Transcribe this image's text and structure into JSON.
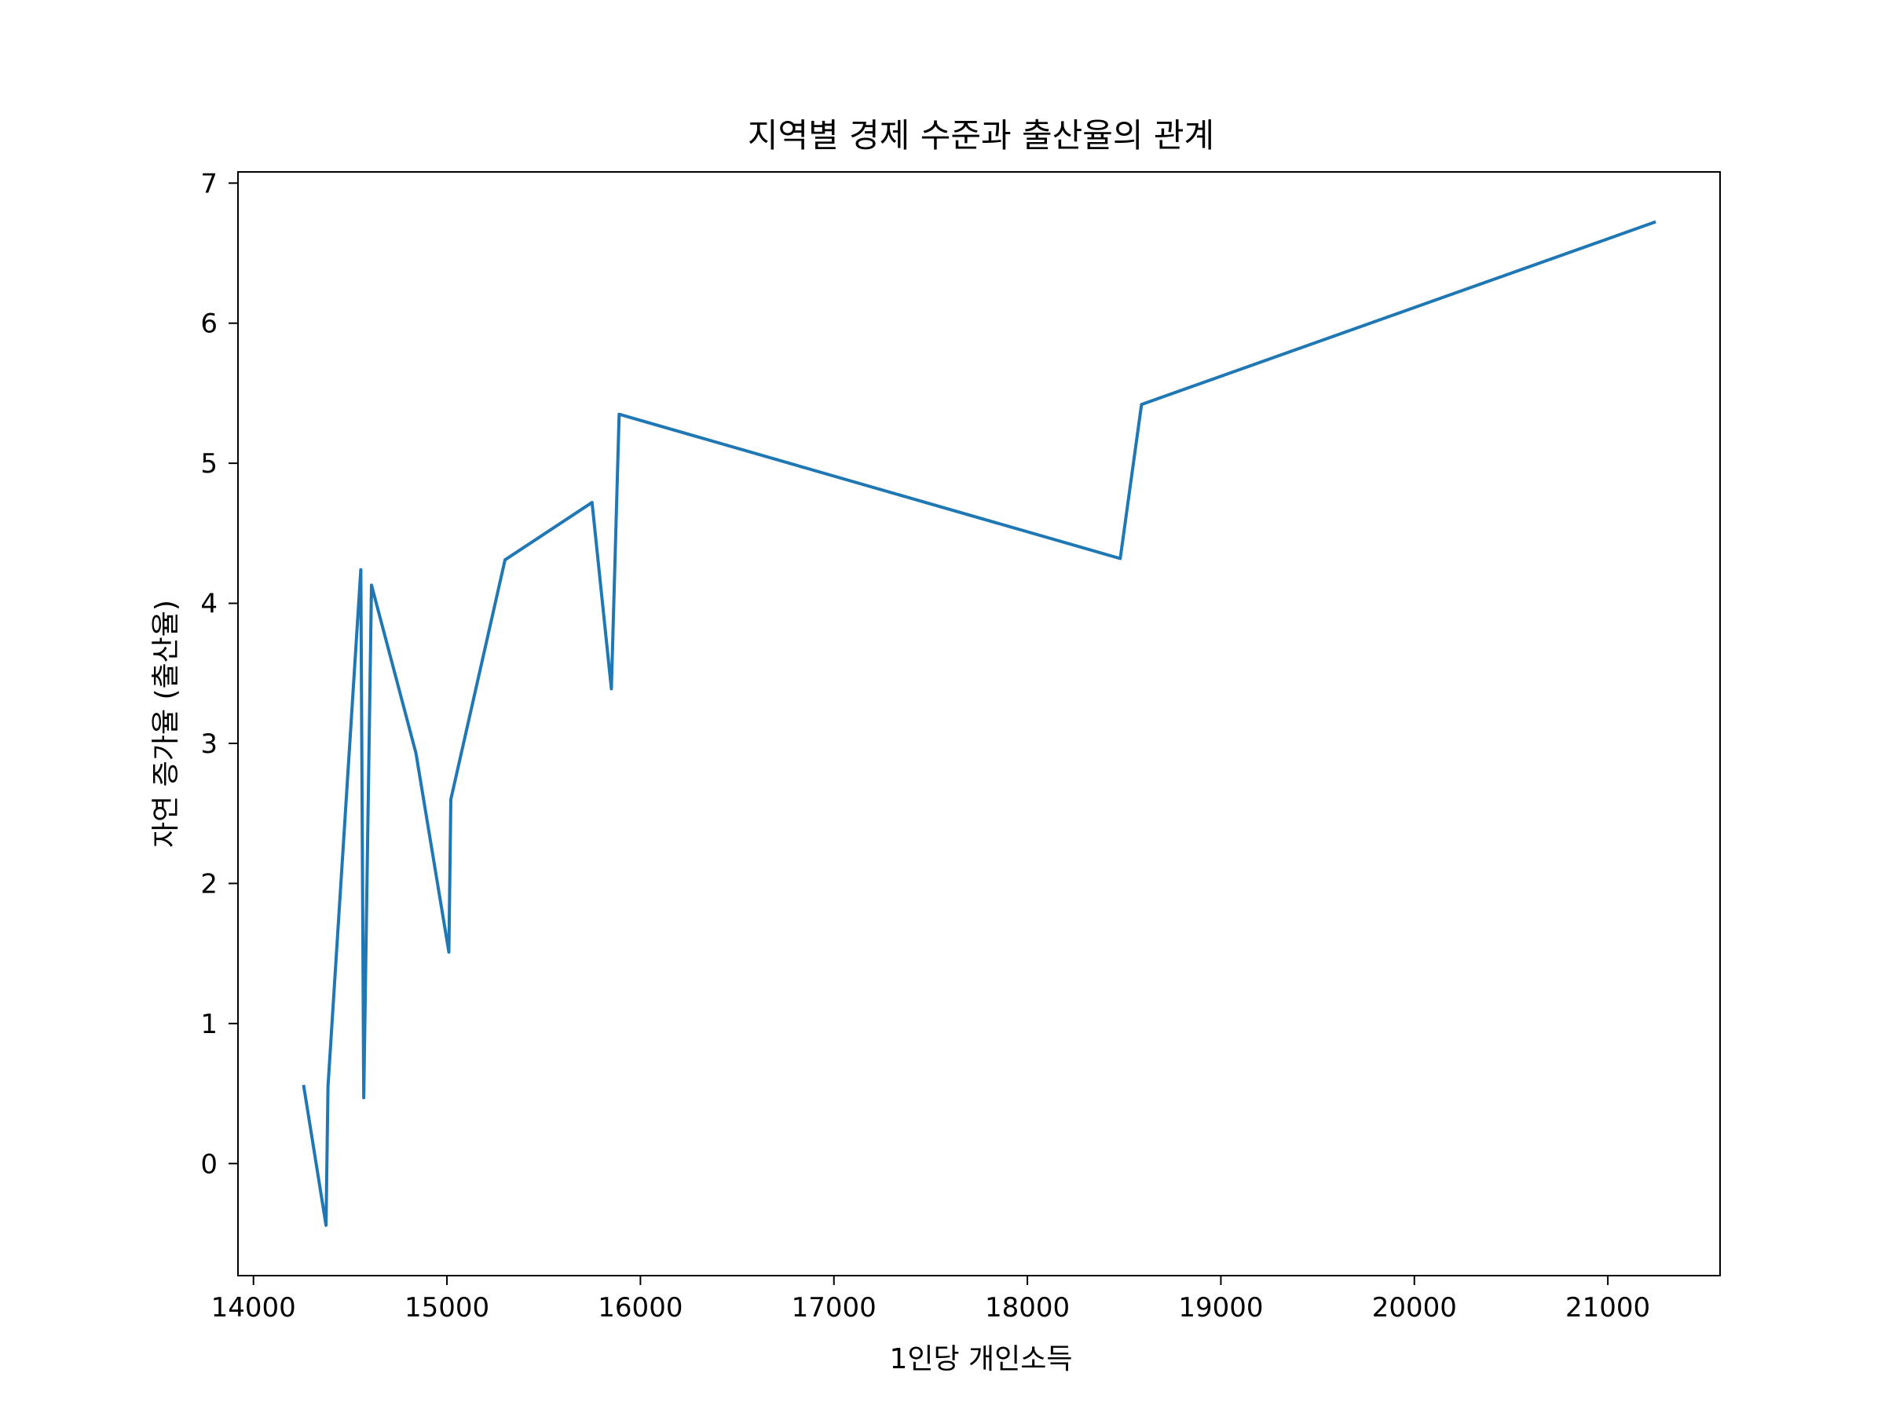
{
  "chart_data": {
    "type": "line",
    "title": "지역별 경제 수준과 출산율의 관계",
    "xlabel": "1인당 개인소득",
    "ylabel": "자연 증가율 (출산율)",
    "xlim": [
      13920,
      21580
    ],
    "ylim": [
      -0.8,
      7.08
    ],
    "xticks": [
      14000,
      15000,
      16000,
      17000,
      18000,
      19000,
      20000,
      21000
    ],
    "yticks": [
      0,
      1,
      2,
      3,
      4,
      5,
      6,
      7
    ],
    "grid": false,
    "series": [
      {
        "color": "#1f77b4",
        "x": [
          14260,
          14375,
          14385,
          14555,
          14570,
          14610,
          14840,
          15010,
          15020,
          15300,
          15750,
          15850,
          15890,
          18480,
          18590,
          21240
        ],
        "y": [
          0.55,
          -0.44,
          0.55,
          4.24,
          0.47,
          4.13,
          2.93,
          1.51,
          2.6,
          4.31,
          4.72,
          3.39,
          5.35,
          4.32,
          5.42,
          6.72
        ]
      }
    ]
  }
}
